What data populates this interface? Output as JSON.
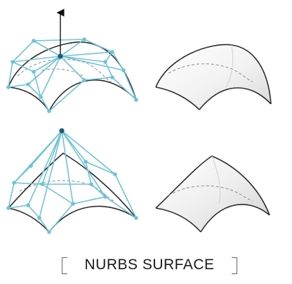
{
  "caption": "NURBS SURFACE",
  "panels": [
    {
      "name": "control-net-top",
      "kind": "control-net",
      "variant": "raised-center-with-arrow"
    },
    {
      "name": "surface-top",
      "kind": "shaded-surface",
      "variant": "dome"
    },
    {
      "name": "control-net-bottom",
      "kind": "control-net",
      "variant": "peaked-control-point"
    },
    {
      "name": "surface-bottom",
      "kind": "shaded-surface",
      "variant": "peak"
    }
  ],
  "colors": {
    "control_net": "#6ec3d6",
    "control_point": "#6ec3d6",
    "selected_point": "#1b5c78",
    "surface_edge": "#2b2b2b",
    "surface_shade": "#e6e6e6",
    "dashed_hidden": "#888888",
    "arrow": "#111111"
  },
  "icons": {
    "move_handle": "up-arrow-icon"
  }
}
